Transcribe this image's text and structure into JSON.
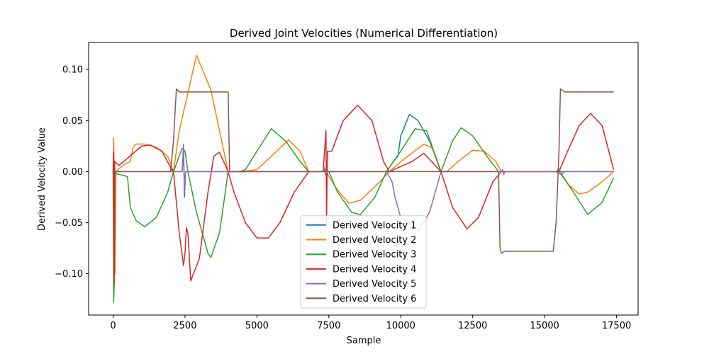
{
  "chart_data": {
    "type": "line",
    "title": "Derived Joint Velocities (Numerical Differentiation)",
    "xlabel": "Sample",
    "ylabel": "Derived Velocity Value",
    "xlim": [
      -850,
      18250
    ],
    "ylim": [
      -0.1405,
      0.1265
    ],
    "xticks": [
      0,
      2500,
      5000,
      7500,
      10000,
      12500,
      15000,
      17500
    ],
    "xtick_labels": [
      "0",
      "2500",
      "5000",
      "7500",
      "10000",
      "12500",
      "15000",
      "17500"
    ],
    "yticks": [
      -0.1,
      -0.05,
      0.0,
      0.05,
      0.1
    ],
    "ytick_labels": [
      "−0.10",
      "−0.05",
      "0.00",
      "0.05",
      "0.10"
    ],
    "grid": false,
    "legend_position": "lower-center",
    "series": [
      {
        "name": "Derived Velocity 1",
        "color": "#1f77b4",
        "points": [
          [
            0,
            0
          ],
          [
            30,
            -0.01
          ],
          [
            60,
            0
          ],
          [
            2400,
            0
          ],
          [
            2450,
            0.02
          ],
          [
            2480,
            -0.025
          ],
          [
            2520,
            0
          ],
          [
            7300,
            0
          ],
          [
            7350,
            0.003
          ],
          [
            7400,
            -0.002
          ],
          [
            7450,
            0
          ],
          [
            9500,
            0
          ],
          [
            9800,
            0.012
          ],
          [
            9900,
            0.015
          ],
          [
            10000,
            0.035
          ],
          [
            10300,
            0.056
          ],
          [
            10600,
            0.05
          ],
          [
            11000,
            0.03
          ],
          [
            11400,
            0
          ],
          [
            17400,
            0
          ]
        ]
      },
      {
        "name": "Derived Velocity 2",
        "color": "#ff7f0e",
        "points": [
          [
            0,
            0
          ],
          [
            20,
            0.033
          ],
          [
            40,
            0
          ],
          [
            70,
            -0.1
          ],
          [
            100,
            0
          ],
          [
            200,
            0.003
          ],
          [
            400,
            0.007
          ],
          [
            600,
            0.01
          ],
          [
            700,
            0.024
          ],
          [
            800,
            0.027
          ],
          [
            1100,
            0.027
          ],
          [
            1500,
            0.024
          ],
          [
            1900,
            0.015
          ],
          [
            2100,
            0
          ],
          [
            2300,
            0.04
          ],
          [
            2900,
            0.114
          ],
          [
            3400,
            0.08
          ],
          [
            4000,
            0
          ],
          [
            4500,
            0
          ],
          [
            5000,
            0.002
          ],
          [
            5500,
            0.015
          ],
          [
            6100,
            0.031
          ],
          [
            6500,
            0.02
          ],
          [
            6800,
            0
          ],
          [
            7400,
            0
          ],
          [
            7800,
            -0.018
          ],
          [
            8200,
            -0.031
          ],
          [
            8600,
            -0.028
          ],
          [
            9200,
            -0.012
          ],
          [
            9600,
            0
          ],
          [
            10100,
            0.012
          ],
          [
            10800,
            0.027
          ],
          [
            11100,
            0.023
          ],
          [
            11400,
            0
          ],
          [
            11600,
            0
          ],
          [
            12000,
            0.01
          ],
          [
            12500,
            0.021
          ],
          [
            12900,
            0.02
          ],
          [
            13300,
            0.01
          ],
          [
            13500,
            0
          ],
          [
            15500,
            0
          ],
          [
            15800,
            -0.012
          ],
          [
            16200,
            -0.022
          ],
          [
            16500,
            -0.02
          ],
          [
            17000,
            -0.01
          ],
          [
            17400,
            0
          ]
        ]
      },
      {
        "name": "Derived Velocity 3",
        "color": "#2ca02c",
        "points": [
          [
            0,
            0
          ],
          [
            20,
            -0.128
          ],
          [
            40,
            -0.11
          ],
          [
            60,
            0
          ],
          [
            100,
            -0.002
          ],
          [
            400,
            -0.004
          ],
          [
            500,
            -0.005
          ],
          [
            600,
            -0.035
          ],
          [
            800,
            -0.048
          ],
          [
            1100,
            -0.054
          ],
          [
            1500,
            -0.045
          ],
          [
            1900,
            -0.02
          ],
          [
            2100,
            0
          ],
          [
            2400,
            0.023
          ],
          [
            2500,
            0.02
          ],
          [
            2600,
            0
          ],
          [
            2900,
            -0.04
          ],
          [
            3300,
            -0.08
          ],
          [
            3400,
            -0.084
          ],
          [
            3700,
            -0.06
          ],
          [
            4000,
            0
          ],
          [
            4400,
            0
          ],
          [
            4600,
            0.002
          ],
          [
            5000,
            0.02
          ],
          [
            5500,
            0.042
          ],
          [
            6000,
            0.03
          ],
          [
            6500,
            0.01
          ],
          [
            6800,
            0
          ],
          [
            7500,
            0
          ],
          [
            7800,
            -0.02
          ],
          [
            8300,
            -0.04
          ],
          [
            8600,
            -0.042
          ],
          [
            9100,
            -0.025
          ],
          [
            9500,
            0
          ],
          [
            10000,
            0.02
          ],
          [
            10500,
            0.042
          ],
          [
            10900,
            0.04
          ],
          [
            11400,
            0
          ],
          [
            11800,
            0.03
          ],
          [
            12100,
            0.043
          ],
          [
            12500,
            0.035
          ],
          [
            13000,
            0.015
          ],
          [
            13400,
            0
          ],
          [
            15400,
            0
          ],
          [
            15600,
            -0.003
          ],
          [
            16000,
            -0.02
          ],
          [
            16500,
            -0.042
          ],
          [
            17000,
            -0.03
          ],
          [
            17400,
            -0.006
          ]
        ]
      },
      {
        "name": "Derived Velocity 4",
        "color": "#d62728",
        "points": [
          [
            0,
            0
          ],
          [
            20,
            0.019
          ],
          [
            40,
            -0.11
          ],
          [
            60,
            0.01
          ],
          [
            200,
            0.006
          ],
          [
            500,
            0.013
          ],
          [
            700,
            0.018
          ],
          [
            1000,
            0.025
          ],
          [
            1300,
            0.026
          ],
          [
            1700,
            0.02
          ],
          [
            2000,
            0.004
          ],
          [
            2100,
            0
          ],
          [
            2300,
            -0.06
          ],
          [
            2450,
            -0.092
          ],
          [
            2500,
            -0.08
          ],
          [
            2550,
            -0.055
          ],
          [
            2600,
            -0.06
          ],
          [
            2700,
            -0.107
          ],
          [
            3000,
            -0.085
          ],
          [
            3300,
            -0.02
          ],
          [
            3500,
            0.015
          ],
          [
            3700,
            0.019
          ],
          [
            4000,
            0
          ],
          [
            4200,
            -0.02
          ],
          [
            4600,
            -0.05
          ],
          [
            5000,
            -0.065
          ],
          [
            5400,
            -0.065
          ],
          [
            5800,
            -0.05
          ],
          [
            6300,
            -0.02
          ],
          [
            6800,
            0
          ],
          [
            7300,
            0
          ],
          [
            7400,
            0.04
          ],
          [
            7420,
            -0.05
          ],
          [
            7450,
            0.02
          ],
          [
            7600,
            0.02
          ],
          [
            8000,
            0.05
          ],
          [
            8500,
            0.065
          ],
          [
            9000,
            0.05
          ],
          [
            9400,
            0.01
          ],
          [
            9600,
            0
          ],
          [
            10400,
            0.01
          ],
          [
            10800,
            0.018
          ],
          [
            11400,
            0
          ],
          [
            11800,
            -0.035
          ],
          [
            12300,
            -0.056
          ],
          [
            12700,
            -0.045
          ],
          [
            13200,
            -0.01
          ],
          [
            13500,
            0
          ],
          [
            15500,
            0
          ],
          [
            15800,
            0.02
          ],
          [
            16200,
            0.045
          ],
          [
            16600,
            0.057
          ],
          [
            17000,
            0.045
          ],
          [
            17400,
            0.002
          ]
        ]
      },
      {
        "name": "Derived Velocity 5",
        "color": "#9467bd",
        "points": [
          [
            0,
            0
          ],
          [
            2400,
            0
          ],
          [
            2450,
            0.027
          ],
          [
            2480,
            -0.02
          ],
          [
            2520,
            0
          ],
          [
            7300,
            0
          ],
          [
            7340,
            0.004
          ],
          [
            7380,
            -0.003
          ],
          [
            7420,
            0
          ],
          [
            9500,
            0
          ],
          [
            9700,
            -0.01
          ],
          [
            9800,
            -0.025
          ],
          [
            9900,
            -0.035
          ],
          [
            10000,
            -0.045
          ],
          [
            10300,
            -0.05
          ],
          [
            10600,
            -0.058
          ],
          [
            11000,
            -0.04
          ],
          [
            11400,
            0
          ],
          [
            13500,
            0
          ],
          [
            13540,
            0.002
          ],
          [
            13580,
            -0.003
          ],
          [
            13620,
            0
          ],
          [
            15400,
            0
          ],
          [
            15500,
            0.003
          ],
          [
            15600,
            -0.003
          ],
          [
            15700,
            0
          ],
          [
            17400,
            0
          ]
        ]
      },
      {
        "name": "Derived Velocity 6",
        "color": "#8c564b",
        "points": [
          [
            0,
            0
          ],
          [
            2000,
            0
          ],
          [
            2100,
            0.03
          ],
          [
            2200,
            0.081
          ],
          [
            2300,
            0.078
          ],
          [
            4000,
            0.078
          ],
          [
            4050,
            0
          ],
          [
            7300,
            0
          ],
          [
            7400,
            0.001
          ],
          [
            7500,
            0
          ],
          [
            13400,
            0
          ],
          [
            13450,
            -0.075
          ],
          [
            13500,
            -0.08
          ],
          [
            13600,
            -0.078
          ],
          [
            15300,
            -0.078
          ],
          [
            15400,
            -0.05
          ],
          [
            15500,
            0.02
          ],
          [
            15550,
            0.081
          ],
          [
            15700,
            0.078
          ],
          [
            17400,
            0.078
          ]
        ]
      }
    ]
  }
}
